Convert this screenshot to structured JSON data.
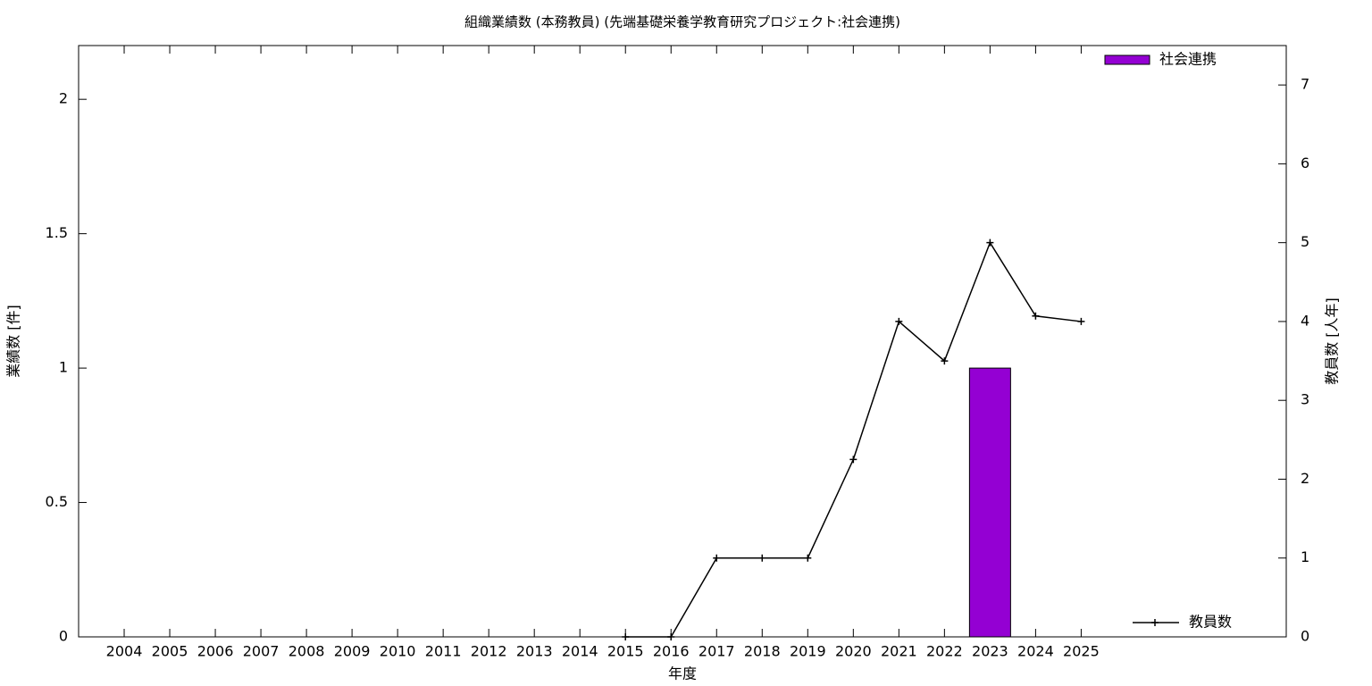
{
  "chart_data": {
    "type": "bar_line",
    "title": "組織業績数 (本務教員) (先端基礎栄養学教育研究プロジェクト:社会連携)",
    "x_label": "年度",
    "y_label": "業績数 [件]",
    "y2_label": "教員数 [人年]",
    "categories": [
      "2004",
      "2005",
      "2006",
      "2007",
      "2008",
      "2009",
      "2010",
      "2011",
      "2012",
      "2013",
      "2014",
      "2015",
      "2016",
      "2017",
      "2018",
      "2019",
      "2020",
      "2021",
      "2022",
      "2023",
      "2024",
      "2025"
    ],
    "series": [
      {
        "name": "社会連携",
        "type": "bar",
        "color": "#9400d3",
        "legend": "top-right",
        "values": [
          0,
          0,
          0,
          0,
          0,
          0,
          0,
          0,
          0,
          0,
          0,
          0,
          0,
          0,
          0,
          0,
          0,
          0,
          0,
          1,
          0,
          0
        ]
      },
      {
        "name": "教員数",
        "type": "line",
        "axis": "y2",
        "color": "#000000",
        "legend": "bottom-right",
        "values": [
          null,
          null,
          null,
          null,
          null,
          null,
          null,
          null,
          null,
          null,
          null,
          0,
          0,
          1,
          1,
          1,
          2.25,
          4,
          3.5,
          5,
          4.07,
          4
        ]
      }
    ],
    "ylim": [
      0,
      2.2
    ],
    "yticks": [
      0,
      0.5,
      1,
      1.5,
      2
    ],
    "y2lim": [
      0,
      7.5
    ],
    "y2ticks": [
      0,
      1,
      2,
      3,
      4,
      5,
      6,
      7
    ]
  }
}
